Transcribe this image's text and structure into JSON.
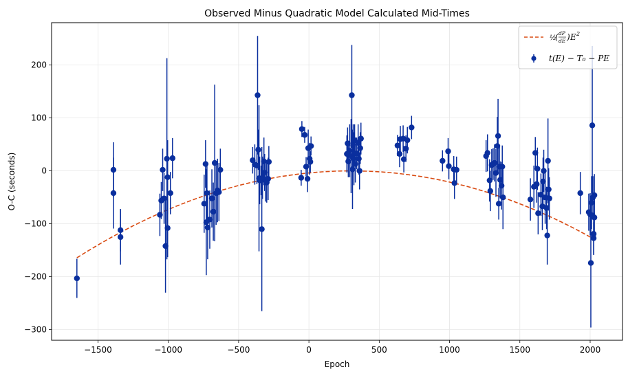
{
  "chart_data": {
    "type": "scatter",
    "title": "Observed Minus Quadratic Model Calculated Mid-Times",
    "xlabel": "Epoch",
    "ylabel": "O-C (seconds)",
    "xlim": [
      -1830,
      2230
    ],
    "ylim": [
      -320,
      280
    ],
    "xticks": [
      -1500,
      -1000,
      -500,
      0,
      500,
      1000,
      1500,
      2000
    ],
    "xtick_labels": [
      "−1500",
      "−1000",
      "−500",
      "0",
      "500",
      "1000",
      "1500",
      "2000"
    ],
    "yticks": [
      -300,
      -200,
      -100,
      0,
      100,
      200
    ],
    "ytick_labels": [
      "−300",
      "−200",
      "−100",
      "0",
      "100",
      "200"
    ],
    "grid": true,
    "legend_position": "top-right",
    "colors": {
      "points": "#0a2f9e",
      "model": "#d94b12",
      "grid": "#e6e6e6"
    },
    "series": [
      {
        "name": "t(E) − T₀ − PE",
        "kind": "errorbar",
        "points": [
          {
            "x": -1650,
            "y": -203,
            "err": 37
          },
          {
            "x": -1390,
            "y": 2,
            "err": 52
          },
          {
            "x": -1390,
            "y": -42,
            "err": 67
          },
          {
            "x": -1340,
            "y": -112,
            "err": 40
          },
          {
            "x": -1340,
            "y": -125,
            "err": 52
          },
          {
            "x": -1060,
            "y": -83,
            "err": 40
          },
          {
            "x": -1050,
            "y": -56,
            "err": 35
          },
          {
            "x": -1040,
            "y": 2,
            "err": 40
          },
          {
            "x": -1030,
            "y": -52,
            "err": 48
          },
          {
            "x": -1020,
            "y": -142,
            "err": 88
          },
          {
            "x": -1010,
            "y": 23,
            "err": 190
          },
          {
            "x": -1005,
            "y": -12,
            "err": 70
          },
          {
            "x": -1005,
            "y": -108,
            "err": 55
          },
          {
            "x": -985,
            "y": -42,
            "err": 40
          },
          {
            "x": -970,
            "y": 24,
            "err": 38
          },
          {
            "x": -745,
            "y": -62,
            "err": 55
          },
          {
            "x": -735,
            "y": 13,
            "err": 45
          },
          {
            "x": -730,
            "y": -97,
            "err": 100
          },
          {
            "x": -725,
            "y": -42,
            "err": 55
          },
          {
            "x": -720,
            "y": -107,
            "err": 60
          },
          {
            "x": -705,
            "y": -92,
            "err": 55
          },
          {
            "x": -690,
            "y": -52,
            "err": 55
          },
          {
            "x": -680,
            "y": -77,
            "err": 55
          },
          {
            "x": -670,
            "y": 15,
            "err": 148
          },
          {
            "x": -660,
            "y": -42,
            "err": 60
          },
          {
            "x": -650,
            "y": -37,
            "err": 60
          },
          {
            "x": -640,
            "y": -40,
            "err": 55
          },
          {
            "x": -630,
            "y": 2,
            "err": 40
          },
          {
            "x": -400,
            "y": 20,
            "err": 25
          },
          {
            "x": -385,
            "y": 12,
            "err": 38
          },
          {
            "x": -370,
            "y": 10,
            "err": 35
          },
          {
            "x": -365,
            "y": 143,
            "err": 112
          },
          {
            "x": -360,
            "y": 40,
            "err": 38
          },
          {
            "x": -355,
            "y": -14,
            "err": 138
          },
          {
            "x": -350,
            "y": -18,
            "err": 45
          },
          {
            "x": -340,
            "y": -18,
            "err": 28
          },
          {
            "x": -335,
            "y": -110,
            "err": 155
          },
          {
            "x": -330,
            "y": -13,
            "err": 40
          },
          {
            "x": -320,
            "y": 18,
            "err": 45
          },
          {
            "x": -315,
            "y": -3,
            "err": 35
          },
          {
            "x": -310,
            "y": -18,
            "err": 40
          },
          {
            "x": -300,
            "y": -22,
            "err": 38
          },
          {
            "x": -290,
            "y": -15,
            "err": 40
          },
          {
            "x": -285,
            "y": 17,
            "err": 30
          },
          {
            "x": -55,
            "y": -13,
            "err": 15
          },
          {
            "x": -50,
            "y": 79,
            "err": 15
          },
          {
            "x": -30,
            "y": 68,
            "err": 15
          },
          {
            "x": -20,
            "y": 8,
            "err": 18
          },
          {
            "x": -10,
            "y": -15,
            "err": 25
          },
          {
            "x": -5,
            "y": 43,
            "err": 35
          },
          {
            "x": 5,
            "y": 23,
            "err": 30
          },
          {
            "x": 10,
            "y": 17,
            "err": 20
          },
          {
            "x": 15,
            "y": 47,
            "err": 18
          },
          {
            "x": 270,
            "y": 32,
            "err": 35
          },
          {
            "x": 275,
            "y": 52,
            "err": 30
          },
          {
            "x": 280,
            "y": 18,
            "err": 30
          },
          {
            "x": 290,
            "y": 38,
            "err": 50
          },
          {
            "x": 300,
            "y": 28,
            "err": 70
          },
          {
            "x": 305,
            "y": 143,
            "err": 95
          },
          {
            "x": 310,
            "y": 3,
            "err": 75
          },
          {
            "x": 315,
            "y": 48,
            "err": 40
          },
          {
            "x": 320,
            "y": 23,
            "err": 50
          },
          {
            "x": 325,
            "y": 58,
            "err": 30
          },
          {
            "x": 330,
            "y": 13,
            "err": 35
          },
          {
            "x": 340,
            "y": 33,
            "err": 30
          },
          {
            "x": 350,
            "y": 53,
            "err": 35
          },
          {
            "x": 355,
            "y": 23,
            "err": 30
          },
          {
            "x": 360,
            "y": 0,
            "err": 35
          },
          {
            "x": 365,
            "y": 43,
            "err": 30
          },
          {
            "x": 370,
            "y": 61,
            "err": 30
          },
          {
            "x": 630,
            "y": 48,
            "err": 20
          },
          {
            "x": 645,
            "y": 32,
            "err": 25
          },
          {
            "x": 650,
            "y": 60,
            "err": 25
          },
          {
            "x": 670,
            "y": 61,
            "err": 25
          },
          {
            "x": 675,
            "y": 22,
            "err": 25
          },
          {
            "x": 690,
            "y": 42,
            "err": 25
          },
          {
            "x": 700,
            "y": 58,
            "err": 25
          },
          {
            "x": 730,
            "y": 82,
            "err": 22
          },
          {
            "x": 950,
            "y": 19,
            "err": 20
          },
          {
            "x": 990,
            "y": 37,
            "err": 25
          },
          {
            "x": 995,
            "y": 9,
            "err": 25
          },
          {
            "x": 1030,
            "y": 3,
            "err": 25
          },
          {
            "x": 1035,
            "y": -23,
            "err": 30
          },
          {
            "x": 1050,
            "y": 2,
            "err": 25
          },
          {
            "x": 1260,
            "y": 28,
            "err": 30
          },
          {
            "x": 1270,
            "y": 34,
            "err": 35
          },
          {
            "x": 1285,
            "y": -18,
            "err": 40
          },
          {
            "x": 1290,
            "y": -38,
            "err": 38
          },
          {
            "x": 1300,
            "y": 11,
            "err": 30
          },
          {
            "x": 1310,
            "y": 13,
            "err": 30
          },
          {
            "x": 1320,
            "y": 15,
            "err": 35
          },
          {
            "x": 1330,
            "y": -4,
            "err": 45
          },
          {
            "x": 1340,
            "y": 47,
            "err": 55
          },
          {
            "x": 1345,
            "y": 66,
            "err": 70
          },
          {
            "x": 1350,
            "y": -62,
            "err": 30
          },
          {
            "x": 1355,
            "y": 8,
            "err": 40
          },
          {
            "x": 1360,
            "y": -17,
            "err": 35
          },
          {
            "x": 1370,
            "y": -28,
            "err": 45
          },
          {
            "x": 1375,
            "y": 8,
            "err": 40
          },
          {
            "x": 1380,
            "y": -50,
            "err": 60
          },
          {
            "x": 1575,
            "y": -54,
            "err": 40
          },
          {
            "x": 1600,
            "y": -30,
            "err": 40
          },
          {
            "x": 1610,
            "y": 34,
            "err": 30
          },
          {
            "x": 1620,
            "y": -25,
            "err": 35
          },
          {
            "x": 1625,
            "y": 4,
            "err": 40
          },
          {
            "x": 1630,
            "y": -80,
            "err": 40
          },
          {
            "x": 1650,
            "y": -45,
            "err": 40
          },
          {
            "x": 1660,
            "y": -67,
            "err": 45
          },
          {
            "x": 1665,
            "y": -20,
            "err": 45
          },
          {
            "x": 1670,
            "y": 0,
            "err": 40
          },
          {
            "x": 1680,
            "y": -50,
            "err": 50
          },
          {
            "x": 1690,
            "y": -70,
            "err": 40
          },
          {
            "x": 1695,
            "y": -122,
            "err": 55
          },
          {
            "x": 1700,
            "y": 19,
            "err": 80
          },
          {
            "x": 1705,
            "y": -35,
            "err": 40
          },
          {
            "x": 1710,
            "y": -52,
            "err": 40
          },
          {
            "x": 1930,
            "y": -42,
            "err": 40
          },
          {
            "x": 1990,
            "y": -78,
            "err": 35
          },
          {
            "x": 2000,
            "y": -82,
            "err": 40
          },
          {
            "x": 2005,
            "y": -174,
            "err": 122
          },
          {
            "x": 2010,
            "y": -60,
            "err": 50
          },
          {
            "x": 2015,
            "y": 86,
            "err": 150
          },
          {
            "x": 2020,
            "y": -50,
            "err": 40
          },
          {
            "x": 2025,
            "y": -119,
            "err": 40
          },
          {
            "x": 2025,
            "y": -127,
            "err": 30
          },
          {
            "x": 2030,
            "y": -88,
            "err": 40
          },
          {
            "x": 2030,
            "y": -46,
            "err": 40
          }
        ]
      },
      {
        "name": "½(dP/dE)E²",
        "kind": "dashed-line",
        "curve": {
          "vertex_x": 300,
          "vertex_y": 0,
          "a": -4.32e-05
        },
        "x_range": [
          -1650,
          2020
        ]
      }
    ]
  }
}
